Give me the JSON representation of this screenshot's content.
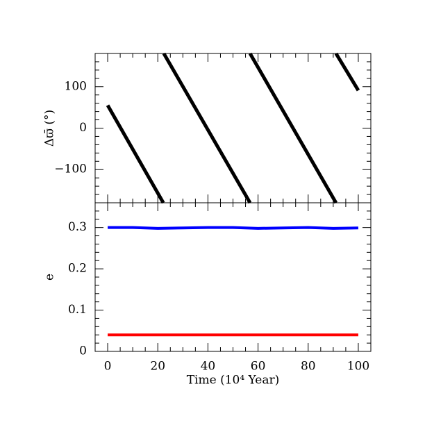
{
  "chart_data": [
    {
      "type": "line",
      "ylabel": "Δϖ̄ (°)",
      "xlim": [
        -5,
        105
      ],
      "xticks": [
        0,
        20,
        40,
        60,
        80,
        100
      ],
      "xticks_minor": [
        5,
        10,
        15,
        25,
        30,
        35,
        45,
        50,
        55,
        65,
        70,
        75,
        85,
        90,
        95
      ],
      "ylim": [
        -180,
        180
      ],
      "yticks": [
        {
          "value": -100,
          "label": "−100"
        },
        0,
        100
      ],
      "yticks_minor": [
        -160,
        -140,
        -120,
        -80,
        -60,
        -40,
        -20,
        20,
        40,
        60,
        80,
        120,
        140,
        160
      ],
      "series": [
        {
          "color": "#000000",
          "x": [
            0,
            22.2,
            22.3,
            22.4,
            56.8,
            56.8,
            56.8,
            91.1,
            91.1,
            91.1,
            100
          ],
          "values": [
            55,
            -180,
            null,
            180,
            -180,
            null,
            180,
            -180,
            null,
            180,
            91
          ]
        }
      ]
    },
    {
      "type": "line",
      "ylabel": "e",
      "xlabel": "Time (10⁴ Year)",
      "xlim": [
        -5,
        105
      ],
      "xticks": [
        0,
        20,
        40,
        60,
        80,
        100
      ],
      "xticks_minor": [
        5,
        10,
        15,
        25,
        30,
        35,
        45,
        50,
        55,
        65,
        70,
        75,
        85,
        90,
        95
      ],
      "ylim": [
        0,
        0.36
      ],
      "yticks": [
        0,
        0.1,
        0.2,
        0.3
      ],
      "yticks_minor": [
        0.02,
        0.04,
        0.06,
        0.08,
        0.12,
        0.14,
        0.16,
        0.18,
        0.22,
        0.24,
        0.26,
        0.28,
        0.32,
        0.34
      ],
      "series": [
        {
          "color": "#0000ff",
          "x": [
            0,
            10,
            20,
            30,
            40,
            50,
            60,
            70,
            80,
            90,
            100
          ],
          "values": [
            0.3,
            0.3,
            0.298,
            0.299,
            0.3,
            0.3,
            0.298,
            0.299,
            0.3,
            0.298,
            0.299
          ]
        },
        {
          "color": "#ff0000",
          "x": [
            0,
            10,
            20,
            30,
            40,
            50,
            60,
            70,
            80,
            90,
            100
          ],
          "values": [
            0.04,
            0.04,
            0.04,
            0.04,
            0.04,
            0.04,
            0.04,
            0.04,
            0.04,
            0.04,
            0.04
          ]
        }
      ]
    }
  ]
}
